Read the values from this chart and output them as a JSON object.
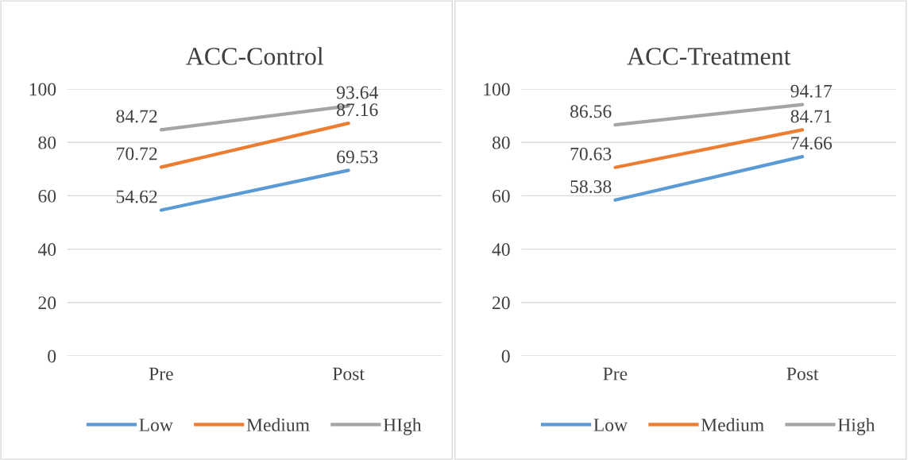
{
  "chart_data": [
    {
      "type": "line",
      "title": "ACC-Control",
      "categories": [
        "Pre",
        "Post"
      ],
      "ylim": [
        0,
        100
      ],
      "yticks": [
        0,
        20,
        40,
        60,
        80,
        100
      ],
      "grid": "y",
      "legend": "bottom",
      "data_labels": true,
      "marker": "none",
      "line_style": "solid",
      "series": [
        {
          "name": "Low",
          "color": "#5b9bd5",
          "values": [
            54.62,
            69.53
          ]
        },
        {
          "name": "Medium",
          "color": "#ed7d31",
          "values": [
            70.72,
            87.16
          ]
        },
        {
          "name": "HIgh",
          "color": "#a5a5a5",
          "values": [
            84.72,
            93.64
          ]
        }
      ]
    },
    {
      "type": "line",
      "title": "ACC-Treatment",
      "categories": [
        "Pre",
        "Post"
      ],
      "ylim": [
        0,
        100
      ],
      "yticks": [
        0,
        20,
        40,
        60,
        80,
        100
      ],
      "grid": "y",
      "legend": "bottom",
      "data_labels": true,
      "marker": "none",
      "line_style": "solid",
      "series": [
        {
          "name": "Low",
          "color": "#5b9bd5",
          "values": [
            58.38,
            74.66
          ]
        },
        {
          "name": "Medium",
          "color": "#ed7d31",
          "values": [
            70.63,
            84.71
          ]
        },
        {
          "name": "High",
          "color": "#a5a5a5",
          "values": [
            86.56,
            94.17
          ]
        }
      ]
    }
  ]
}
